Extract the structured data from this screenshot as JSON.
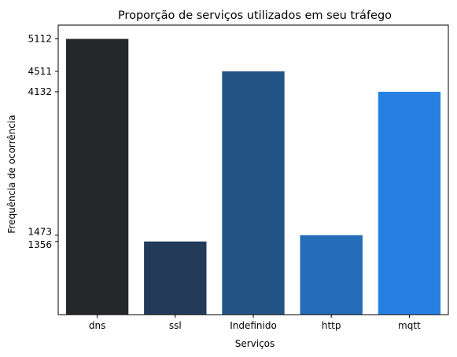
{
  "chart_data": {
    "type": "bar",
    "title": "Proporção de serviços utilizados em seu tráfego",
    "xlabel": "Serviços",
    "ylabel": "Frequência de ocorrência",
    "categories": [
      "dns",
      "ssl",
      "Indefinido",
      "http",
      "mqtt"
    ],
    "values": [
      5112,
      1356,
      4511,
      1473,
      4132
    ],
    "colors": [
      "#25272b",
      "#233a59",
      "#245487",
      "#246cb7",
      "#2680e2"
    ],
    "yticks": [
      1356,
      1473,
      4132,
      4511,
      5112
    ],
    "ylim": [
      0,
      5367.6
    ],
    "grid": false,
    "legend": false
  }
}
